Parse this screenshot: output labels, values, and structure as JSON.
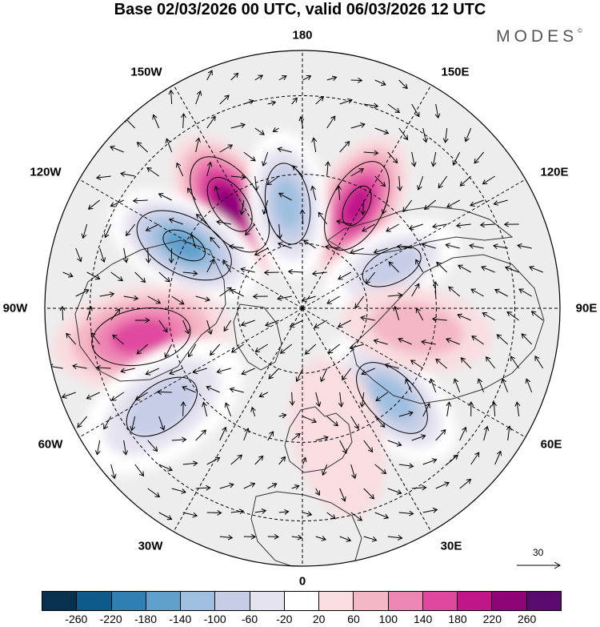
{
  "title": "Base 02/03/2026 00 UTC, valid 06/03/2026 12 UTC",
  "brand": "MODES",
  "brand_mark": "©",
  "longitude_labels": {
    "n180": "180",
    "w150": "150W",
    "e150": "150E",
    "w120": "120W",
    "e120": "120E",
    "w90": "90W",
    "e90": "90E",
    "w60": "60W",
    "e60": "60E",
    "w30": "30W",
    "e30": "30E",
    "s0": "0"
  },
  "wind_reference": {
    "value": "30",
    "icon": "reference-arrow-icon"
  },
  "colorbar": {
    "colors": [
      "#08304f",
      "#0e5a8a",
      "#2f7fb5",
      "#5fa0cc",
      "#9ebfdf",
      "#c6cde6",
      "#e6e3f0",
      "#ffffff",
      "#f9dde0",
      "#f4b7c5",
      "#ee86b3",
      "#e0489f",
      "#c0168a",
      "#8e0579",
      "#5a0a6e"
    ],
    "ticks": [
      "-260",
      "-220",
      "-180",
      "-140",
      "-100",
      "-60",
      "-20",
      "20",
      "60",
      "100",
      "140",
      "180",
      "220",
      "260"
    ]
  },
  "anomaly_centers": [
    {
      "lon": -145,
      "lat": 52,
      "value": 230
    },
    {
      "lon": 152,
      "lat": 55,
      "value": 200
    },
    {
      "lon": -172,
      "lat": 58,
      "value": -150
    },
    {
      "lon": -118,
      "lat": 50,
      "value": -210
    },
    {
      "lon": 115,
      "lat": 60,
      "value": -120
    },
    {
      "lon": -80,
      "lat": 42,
      "value": 160
    },
    {
      "lon": -55,
      "lat": 40,
      "value": -120
    },
    {
      "lon": 45,
      "lat": 52,
      "value": -150
    },
    {
      "lon": 80,
      "lat": 55,
      "value": 60
    },
    {
      "lon": 15,
      "lat": 50,
      "value": 50
    }
  ]
}
